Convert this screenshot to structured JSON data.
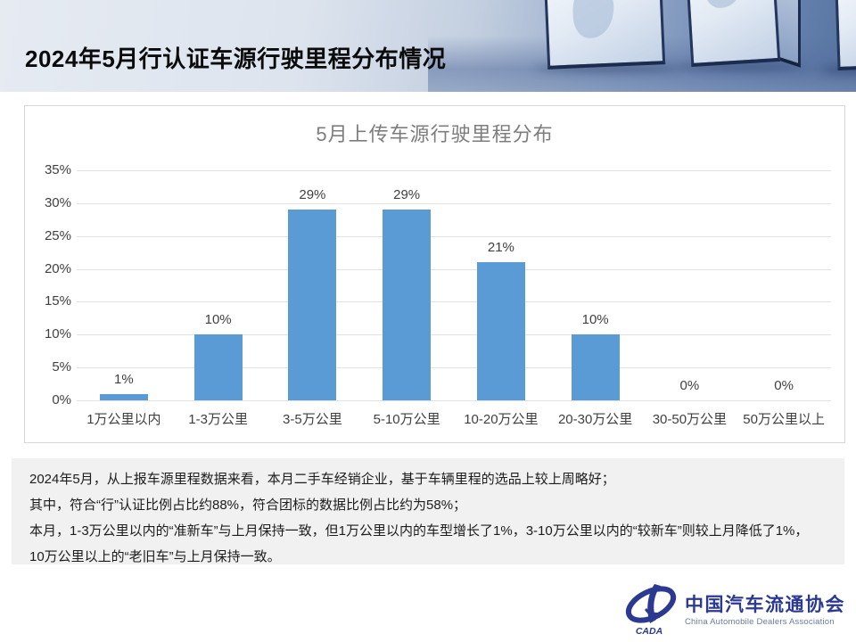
{
  "header": {
    "title": "2024年5月行认证车源行驶里程分布情况"
  },
  "chart_data": {
    "type": "bar",
    "title": "5月上传车源行驶里程分布",
    "categories": [
      "1万公里以内",
      "1-3万公里",
      "3-5万公里",
      "5-10万公里",
      "10-20万公里",
      "20-30万公里",
      "30-50万公里",
      "50万公里以上"
    ],
    "values": [
      1,
      10,
      29,
      29,
      21,
      10,
      0,
      0
    ],
    "value_labels": [
      "1%",
      "10%",
      "29%",
      "29%",
      "21%",
      "10%",
      "0%",
      "0%"
    ],
    "xlabel": "",
    "ylabel": "",
    "ylim": [
      0,
      35
    ],
    "ytick_step": 5,
    "ytick_labels": [
      "0%",
      "5%",
      "10%",
      "15%",
      "20%",
      "25%",
      "30%",
      "35%"
    ],
    "grid": true,
    "legend_position": "none",
    "bar_color": "#5B9BD5"
  },
  "summary": {
    "lines": [
      "2024年5月，从上报车源里程数据来看，本月二手车经销企业，基于车辆里程的选品上较上周略好；",
      "其中，符合“行”认证比例占比约88%，符合团标的数据比例占比约为58%；",
      "本月，1-3万公里以内的“准新车”与上月保持一致，但1万公里以内的车型增长了1%，3-10万公里以内的“较新车”则较上月降低了1%，",
      "10万公里以上的“老旧车”与上月保持一致。"
    ]
  },
  "footer": {
    "logo_acronym": "CADA",
    "org_name_zh": "中国汽车流通协会",
    "org_name_en": "China Automobile Dealers Association"
  },
  "colors": {
    "bar": "#5B9BD5",
    "logo_blue": "#2B3990",
    "gridline": "#e2e2e2",
    "summary_bg": "#f1f1f1"
  }
}
